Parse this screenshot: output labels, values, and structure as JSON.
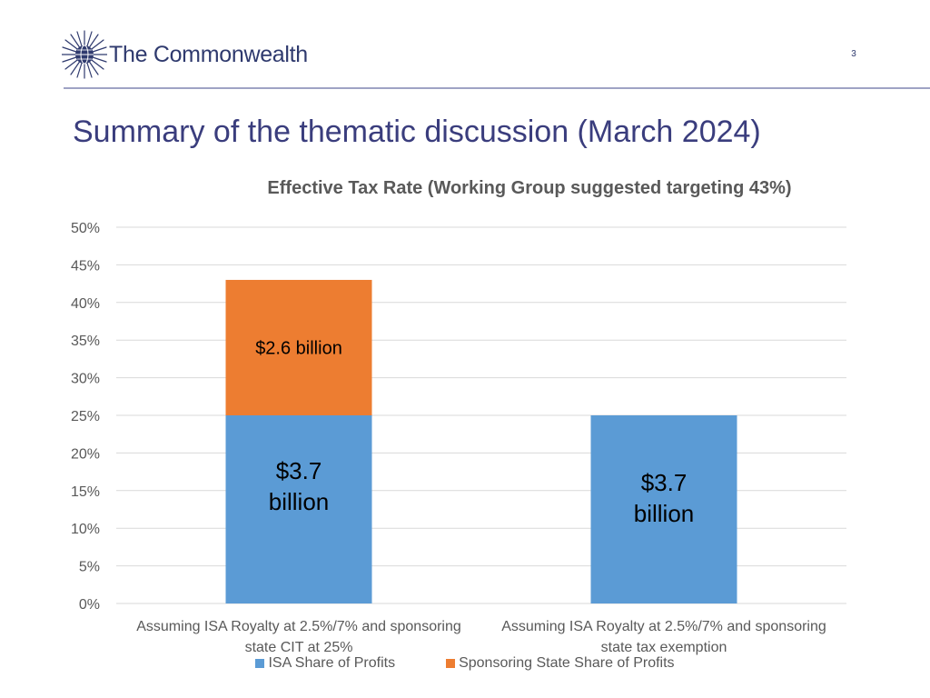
{
  "header": {
    "logo_text": "The Commonwealth",
    "page_number": "3"
  },
  "slide": {
    "title": "Summary of the thematic discussion (March 2024)"
  },
  "colors": {
    "isa": "#5b9bd5",
    "state": "#ed7d31",
    "grid": "#d9d9d9",
    "axis_text": "#595959",
    "title_text": "#3a3d7d"
  },
  "chart_data": {
    "type": "bar",
    "stacked": true,
    "title": "Effective Tax Rate (Working Group suggested targeting 43%)",
    "xlabel": "",
    "ylabel": "",
    "ylim": [
      0,
      50
    ],
    "yticks": [
      0,
      5,
      10,
      15,
      20,
      25,
      30,
      35,
      40,
      45,
      50
    ],
    "ytick_labels": [
      "0%",
      "5%",
      "10%",
      "15%",
      "20%",
      "25%",
      "30%",
      "35%",
      "40%",
      "45%",
      "50%"
    ],
    "grid": true,
    "legend_position": "bottom",
    "categories": [
      [
        "Assuming ISA Royalty at 2.5%/7% and sponsoring",
        "state CIT at 25%"
      ],
      [
        "Assuming ISA Royalty at 2.5%/7% and sponsoring",
        "state tax exemption"
      ]
    ],
    "series": [
      {
        "name": "ISA Share of Profits",
        "color": "#5b9bd5",
        "values": [
          25,
          25
        ],
        "data_labels": [
          [
            "$3.7",
            "billion"
          ],
          [
            "$3.7",
            "billion"
          ]
        ]
      },
      {
        "name": "Sponsoring State Share of Profits",
        "color": "#ed7d31",
        "values": [
          18,
          0
        ],
        "data_labels": [
          [
            "$2.6 billion"
          ],
          null
        ]
      }
    ]
  }
}
